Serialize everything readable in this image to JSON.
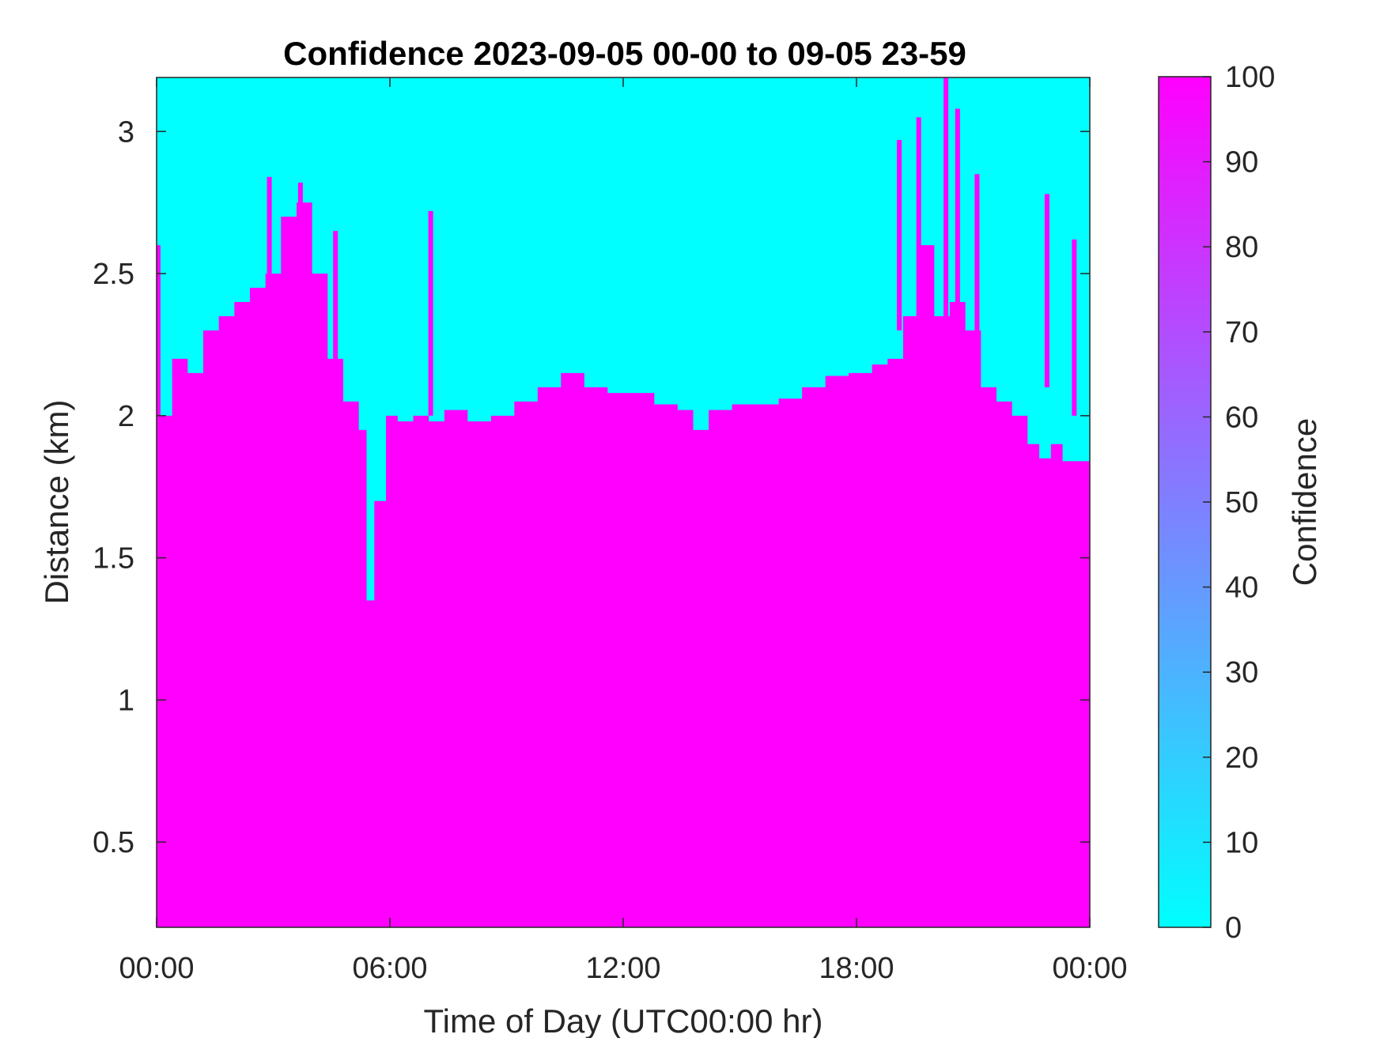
{
  "chart_data": {
    "type": "heatmap",
    "title": "Confidence 2023-09-05 00-00 to 09-05 23-59",
    "xlabel": "Time of Day (UTC00:00 hr)",
    "ylabel": "Distance (km)",
    "x_range_hours": [
      0,
      24
    ],
    "y_range_km": [
      0.2,
      3.19
    ],
    "xticks": [
      {
        "hour": 0,
        "label": "00:00"
      },
      {
        "hour": 6,
        "label": "06:00"
      },
      {
        "hour": 12,
        "label": "12:00"
      },
      {
        "hour": 18,
        "label": "18:00"
      },
      {
        "hour": 24,
        "label": "00:00"
      }
    ],
    "yticks": [
      {
        "value": 0.5,
        "label": "0.5"
      },
      {
        "value": 1,
        "label": "1"
      },
      {
        "value": 1.5,
        "label": "1.5"
      },
      {
        "value": 2,
        "label": "2"
      },
      {
        "value": 2.5,
        "label": "2.5"
      },
      {
        "value": 3,
        "label": "3"
      }
    ],
    "colorbar": {
      "label": "Confidence",
      "range": [
        0,
        100
      ],
      "ticks": [
        "0",
        "10",
        "20",
        "30",
        "40",
        "50",
        "60",
        "70",
        "80",
        "90",
        "100"
      ],
      "colormap": "cool",
      "low_color": "#00FFFF",
      "high_color": "#FF00FF"
    },
    "high_confidence_top_km": {
      "hours": [
        0,
        0.1,
        0.4,
        0.8,
        1.2,
        1.6,
        2.0,
        2.4,
        2.8,
        3.2,
        3.6,
        4.0,
        4.4,
        4.8,
        5.2,
        5.4,
        5.6,
        5.9,
        6.2,
        6.6,
        7.0,
        7.4,
        8.0,
        8.6,
        9.2,
        9.8,
        10.4,
        11.0,
        11.6,
        12.2,
        12.8,
        13.4,
        13.8,
        14.2,
        14.8,
        15.4,
        16.0,
        16.6,
        17.2,
        17.8,
        18.4,
        18.8,
        19.2,
        19.6,
        20.0,
        20.4,
        20.8,
        21.2,
        21.6,
        22.0,
        22.4,
        22.7,
        23.0,
        23.3,
        23.6,
        24.0
      ],
      "top_km": [
        2.6,
        2.0,
        2.2,
        2.15,
        2.3,
        2.35,
        2.4,
        2.45,
        2.5,
        2.7,
        2.75,
        2.5,
        2.2,
        2.05,
        1.95,
        1.35,
        1.7,
        2.0,
        1.98,
        2.0,
        1.98,
        2.02,
        1.98,
        2.0,
        2.05,
        2.1,
        2.15,
        2.1,
        2.08,
        2.08,
        2.04,
        2.02,
        1.95,
        2.02,
        2.04,
        2.04,
        2.06,
        2.1,
        2.14,
        2.15,
        2.18,
        2.2,
        2.35,
        2.6,
        2.35,
        2.4,
        2.3,
        2.1,
        2.05,
        2.0,
        1.9,
        1.85,
        1.9,
        1.84,
        1.84,
        1.88
      ]
    },
    "streaks": [
      {
        "hour": 2.9,
        "bottom_km": 2.5,
        "top_km": 2.84
      },
      {
        "hour": 3.7,
        "bottom_km": 2.4,
        "top_km": 2.82
      },
      {
        "hour": 4.6,
        "bottom_km": 2.2,
        "top_km": 2.65
      },
      {
        "hour": 7.05,
        "bottom_km": 2.0,
        "top_km": 2.72
      },
      {
        "hour": 19.1,
        "bottom_km": 2.3,
        "top_km": 2.97
      },
      {
        "hour": 19.6,
        "bottom_km": 2.2,
        "top_km": 3.05
      },
      {
        "hour": 20.3,
        "bottom_km": 2.1,
        "top_km": 3.19
      },
      {
        "hour": 20.6,
        "bottom_km": 2.3,
        "top_km": 3.08
      },
      {
        "hour": 21.1,
        "bottom_km": 2.1,
        "top_km": 2.85
      },
      {
        "hour": 22.9,
        "bottom_km": 2.1,
        "top_km": 2.78
      },
      {
        "hour": 23.6,
        "bottom_km": 2.0,
        "top_km": 2.62
      }
    ]
  }
}
